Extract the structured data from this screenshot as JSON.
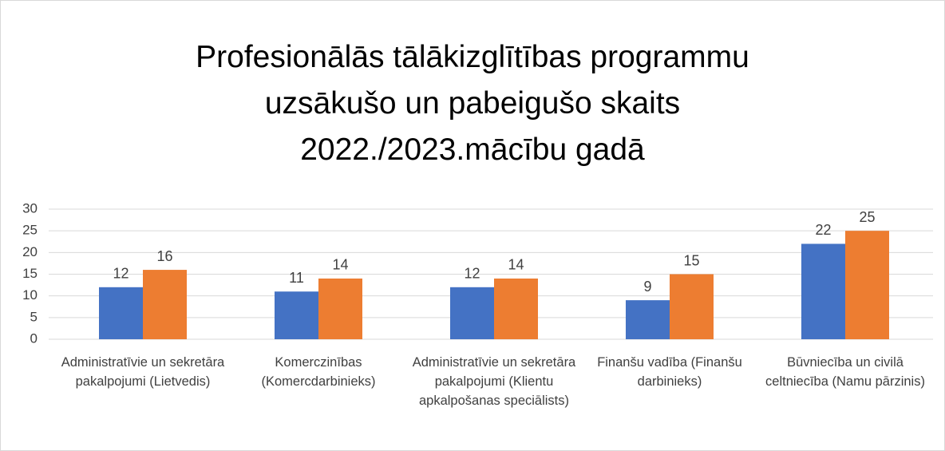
{
  "chart_data": {
    "type": "bar",
    "title": "Profesionālās tālākizglītības programmu uzsākušo un pabeigušo skaits 2022./2023.mācību gadā",
    "categories": [
      "Administratīvie un sekretāra pakalpojumi (Lietvedis)",
      "Komerczinības (Komercdarbinieks)",
      "Administratīvie un sekretāra pakalpojumi (Klientu apkalpošanas speciālists)",
      "Finanšu vadība (Finanšu darbinieks)",
      "Būvniecība un civilā celtniecība (Namu pārzinis)"
    ],
    "series": [
      {
        "color": "#4472c4",
        "values": [
          12,
          11,
          12,
          9,
          22
        ]
      },
      {
        "color": "#ed7d31",
        "values": [
          16,
          14,
          14,
          15,
          25
        ]
      }
    ],
    "ylim": [
      0,
      30
    ],
    "yticks": [
      0,
      5,
      10,
      15,
      20,
      25,
      30
    ],
    "grid": true
  }
}
